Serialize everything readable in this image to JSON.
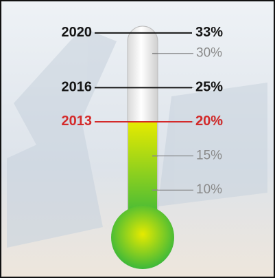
{
  "chart_data": {
    "type": "thermometer",
    "categories": [
      "2013",
      "2016",
      "2020"
    ],
    "values": [
      20,
      25,
      33
    ],
    "value_labels": [
      "20%",
      "25%",
      "33%"
    ],
    "colors": [
      "#d42a2a",
      "#151515",
      "#151515"
    ],
    "ylim": [
      7,
      34
    ],
    "yticks": [
      {
        "value": 10,
        "label": "10%"
      },
      {
        "value": 15,
        "label": "15%"
      },
      {
        "value": 20,
        "label": "20%"
      },
      {
        "value": 25,
        "label": "25%"
      },
      {
        "value": 30,
        "label": "30%"
      }
    ],
    "fill_colors": [
      "#e6ea00",
      "#3cb83a"
    ]
  }
}
